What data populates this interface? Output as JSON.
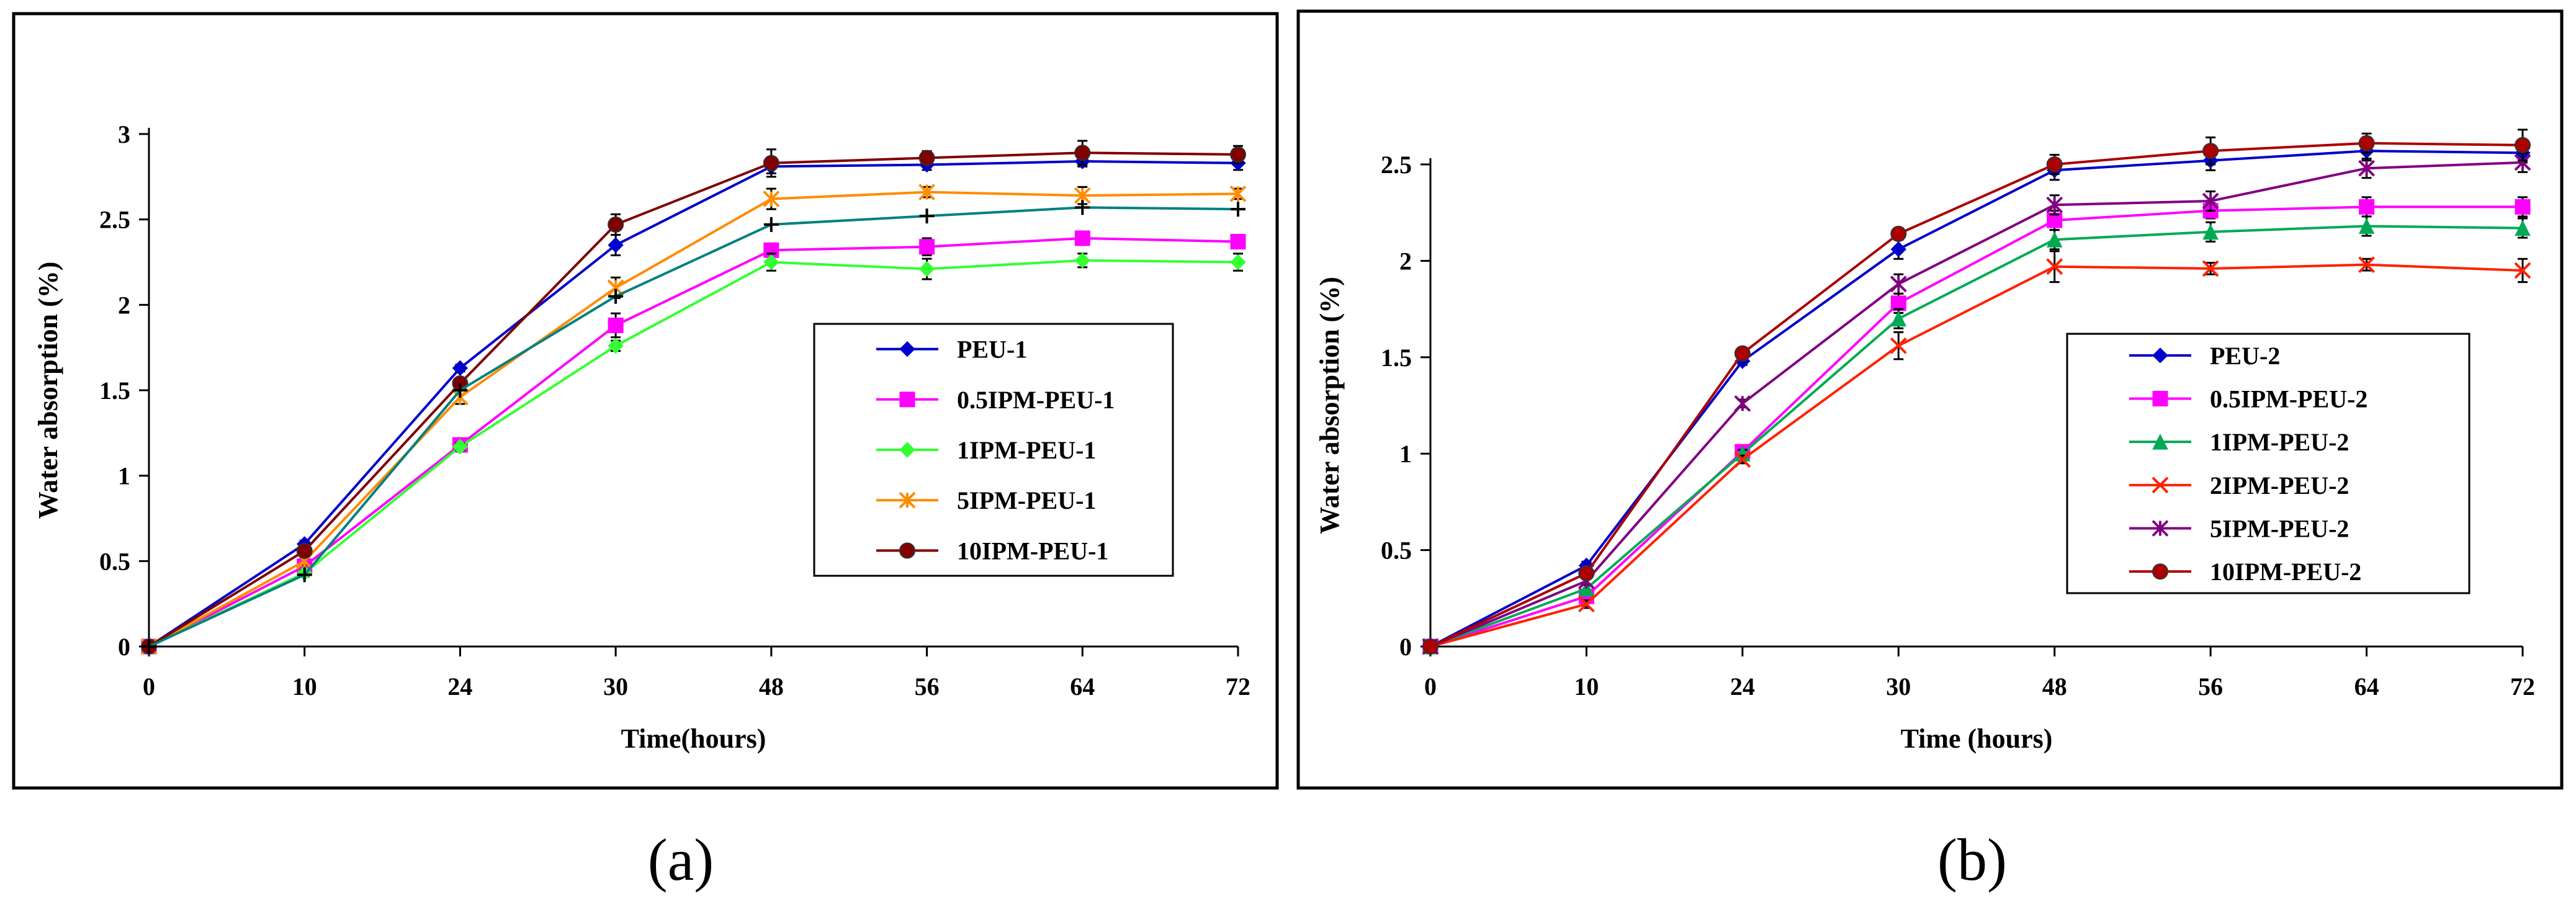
{
  "chart_data": [
    {
      "type": "line",
      "panel_label": "(a)",
      "xlabel": "Time(hours)",
      "ylabel": "Water absorption (%)",
      "categories": [
        "0",
        "10",
        "24",
        "30",
        "48",
        "56",
        "64",
        "72"
      ],
      "ylim": [
        0,
        3
      ],
      "yticks": [
        "0",
        "0.5",
        "1",
        "1.5",
        "2",
        "2.5",
        "3"
      ],
      "legend_position": "center-right",
      "series": [
        {
          "name": "PEU-1",
          "color": "#0000cc",
          "marker": "diamond",
          "values": [
            0,
            0.6,
            1.63,
            2.35,
            2.81,
            2.82,
            2.84,
            2.83
          ],
          "errors": [
            0,
            0.02,
            0.02,
            0.06,
            0.04,
            0.03,
            0.03,
            0.04
          ]
        },
        {
          "name": "0.5IPM-PEU-1",
          "color": "#ff00ff",
          "marker": "square",
          "values": [
            0,
            0.47,
            1.18,
            1.88,
            2.32,
            2.34,
            2.39,
            2.37
          ],
          "errors": [
            0,
            0.02,
            0.02,
            0.07,
            0.03,
            0.05,
            0.04,
            0.03
          ]
        },
        {
          "name": "1IPM-PEU-1",
          "color": "#33ff33",
          "marker": "diamond",
          "values": [
            0,
            0.43,
            1.17,
            1.76,
            2.25,
            2.21,
            2.26,
            2.25
          ],
          "errors": [
            0,
            0.02,
            0.02,
            0.03,
            0.05,
            0.06,
            0.04,
            0.05
          ]
        },
        {
          "name": "5IPM-PEU-1",
          "color": "#ff8c00",
          "marker": "asterisk",
          "values": [
            0,
            0.5,
            1.46,
            2.1,
            2.62,
            2.66,
            2.64,
            2.65
          ],
          "errors": [
            0,
            0.02,
            0.04,
            0.06,
            0.06,
            0.03,
            0.05,
            0.03
          ]
        },
        {
          "name": "10IPM-PEU-1",
          "color": "#800000",
          "marker": "circle",
          "values": [
            0,
            0.56,
            1.54,
            2.47,
            2.83,
            2.86,
            2.89,
            2.88
          ],
          "errors": [
            0,
            0.02,
            0.03,
            0.06,
            0.08,
            0.04,
            0.07,
            0.05
          ]
        },
        {
          "name": "",
          "color": "#008080",
          "marker": "plus",
          "values": [
            0,
            0.42,
            1.5,
            2.05,
            2.47,
            2.52,
            2.57,
            2.56
          ],
          "errors": [
            0,
            0,
            0,
            0,
            0,
            0,
            0,
            0
          ]
        }
      ]
    },
    {
      "type": "line",
      "panel_label": "(b)",
      "xlabel": "Time (hours)",
      "ylabel": "Water absorption (%)",
      "categories": [
        "0",
        "10",
        "24",
        "30",
        "48",
        "56",
        "64",
        "72"
      ],
      "ylim": [
        0,
        2.5
      ],
      "yticks": [
        "0",
        "0.5",
        "1",
        "1.5",
        "2",
        "2.5"
      ],
      "legend_position": "center-right",
      "series": [
        {
          "name": "PEU-2",
          "color": "#0000cc",
          "marker": "diamond",
          "values": [
            0,
            0.42,
            1.48,
            2.06,
            2.47,
            2.52,
            2.57,
            2.56
          ],
          "errors": [
            0,
            0.02,
            0.02,
            0.05,
            0.05,
            0.05,
            0.05,
            0.05
          ]
        },
        {
          "name": "0.5IPM-PEU-2",
          "color": "#ff00ff",
          "marker": "square",
          "values": [
            0,
            0.26,
            1.01,
            1.78,
            2.21,
            2.26,
            2.28,
            2.28
          ],
          "errors": [
            0,
            0.02,
            0.02,
            0.05,
            0.05,
            0.04,
            0.05,
            0.05
          ]
        },
        {
          "name": "1IPM-PEU-2",
          "color": "#00aa55",
          "marker": "triangle",
          "values": [
            0,
            0.3,
            1.0,
            1.7,
            2.11,
            2.15,
            2.18,
            2.17
          ],
          "errors": [
            0,
            0.02,
            0.02,
            0.05,
            0.05,
            0.05,
            0.05,
            0.05
          ]
        },
        {
          "name": "2IPM-PEU-2",
          "color": "#ff2200",
          "marker": "x",
          "values": [
            0,
            0.22,
            0.97,
            1.56,
            1.97,
            1.96,
            1.98,
            1.95
          ],
          "errors": [
            0,
            0.02,
            0.02,
            0.07,
            0.08,
            0.03,
            0.03,
            0.06
          ]
        },
        {
          "name": "5IPM-PEU-2",
          "color": "#800080",
          "marker": "asterisk",
          "values": [
            0,
            0.34,
            1.26,
            1.88,
            2.29,
            2.31,
            2.48,
            2.51
          ],
          "errors": [
            0,
            0.02,
            0.02,
            0.05,
            0.05,
            0.05,
            0.05,
            0.05
          ]
        },
        {
          "name": "10IPM-PEU-2",
          "color": "#aa0000",
          "marker": "circle",
          "values": [
            0,
            0.38,
            1.52,
            2.14,
            2.5,
            2.57,
            2.61,
            2.6
          ],
          "errors": [
            0,
            0.02,
            0.02,
            0.03,
            0.05,
            0.07,
            0.05,
            0.08
          ]
        }
      ]
    }
  ]
}
